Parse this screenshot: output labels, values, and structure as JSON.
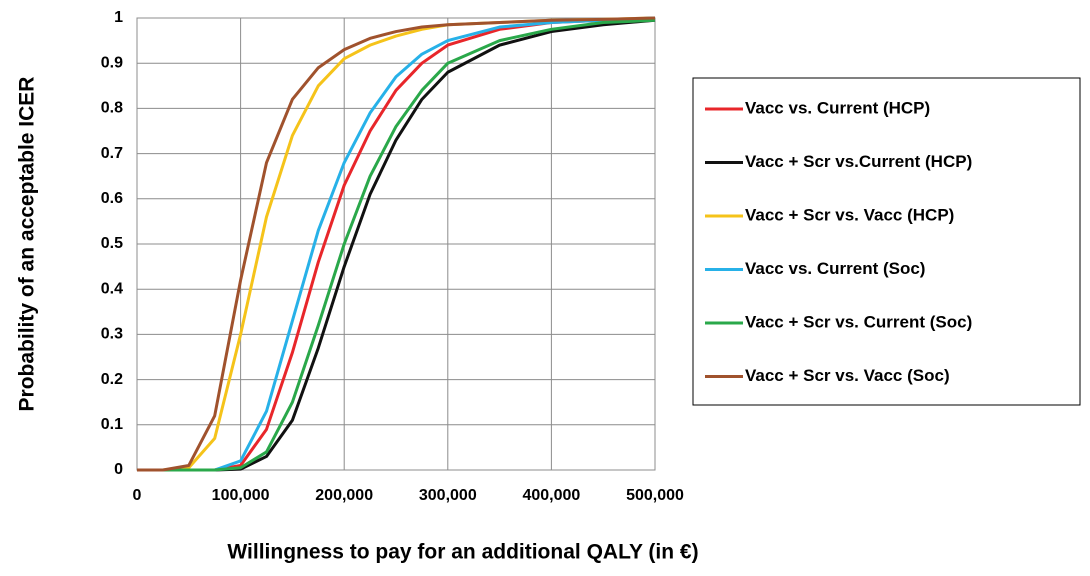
{
  "chart_data": {
    "type": "line",
    "x_label": "Willingness to pay for an additional QALY (in €)",
    "y_label": "Probability of an acceptable ICER",
    "x": [
      0,
      25000,
      50000,
      75000,
      100000,
      125000,
      150000,
      175000,
      200000,
      225000,
      250000,
      275000,
      300000,
      350000,
      400000,
      450000,
      500000
    ],
    "series": [
      {
        "name": "Vacc vs. Current (HCP)",
        "color": "#e8262a",
        "values": [
          0,
          0,
          0,
          0,
          0.01,
          0.09,
          0.26,
          0.46,
          0.63,
          0.75,
          0.84,
          0.9,
          0.94,
          0.975,
          0.99,
          0.995,
          1
        ]
      },
      {
        "name": "Vacc + Scr vs.Current (HCP)",
        "color": "#111111",
        "values": [
          0,
          0,
          0,
          0,
          0.002,
          0.03,
          0.11,
          0.27,
          0.45,
          0.61,
          0.73,
          0.82,
          0.88,
          0.94,
          0.97,
          0.985,
          0.995
        ]
      },
      {
        "name": "Vacc + Scr vs. Vacc (HCP)",
        "color": "#f5c31a",
        "values": [
          0,
          0,
          0.005,
          0.07,
          0.3,
          0.56,
          0.74,
          0.85,
          0.91,
          0.94,
          0.96,
          0.975,
          0.985,
          0.99,
          0.995,
          0.997,
          1
        ]
      },
      {
        "name": "Vacc vs. Current (Soc)",
        "color": "#27b1e8",
        "values": [
          0,
          0,
          0,
          0,
          0.02,
          0.13,
          0.33,
          0.53,
          0.68,
          0.79,
          0.87,
          0.92,
          0.95,
          0.98,
          0.99,
          0.995,
          1
        ]
      },
      {
        "name": "Vacc + Scr vs. Current (Soc)",
        "color": "#2aa84a",
        "values": [
          0,
          0,
          0,
          0,
          0.005,
          0.04,
          0.15,
          0.32,
          0.5,
          0.65,
          0.76,
          0.84,
          0.9,
          0.95,
          0.975,
          0.99,
          0.995
        ]
      },
      {
        "name": "Vacc + Scr vs. Vacc (Soc)",
        "color": "#a0522d",
        "values": [
          0,
          0,
          0.01,
          0.12,
          0.42,
          0.68,
          0.82,
          0.89,
          0.93,
          0.955,
          0.97,
          0.98,
          0.985,
          0.99,
          0.995,
          0.997,
          1
        ]
      }
    ],
    "xlim": [
      0,
      500000
    ],
    "xticks": [
      0,
      {
        "value": 100000,
        "label": "100,000"
      },
      {
        "value": 200000,
        "label": "200,000"
      },
      {
        "value": 300000,
        "label": "300,000"
      },
      {
        "value": 400000,
        "label": "400,000"
      },
      {
        "value": 500000,
        "label": "500,000"
      }
    ],
    "ylim": [
      0,
      1
    ],
    "yticks": [
      0,
      0.1,
      0.2,
      0.3,
      0.4,
      0.5,
      0.6,
      0.7,
      0.8,
      0.9,
      1
    ],
    "grid": true,
    "legend": "right"
  }
}
